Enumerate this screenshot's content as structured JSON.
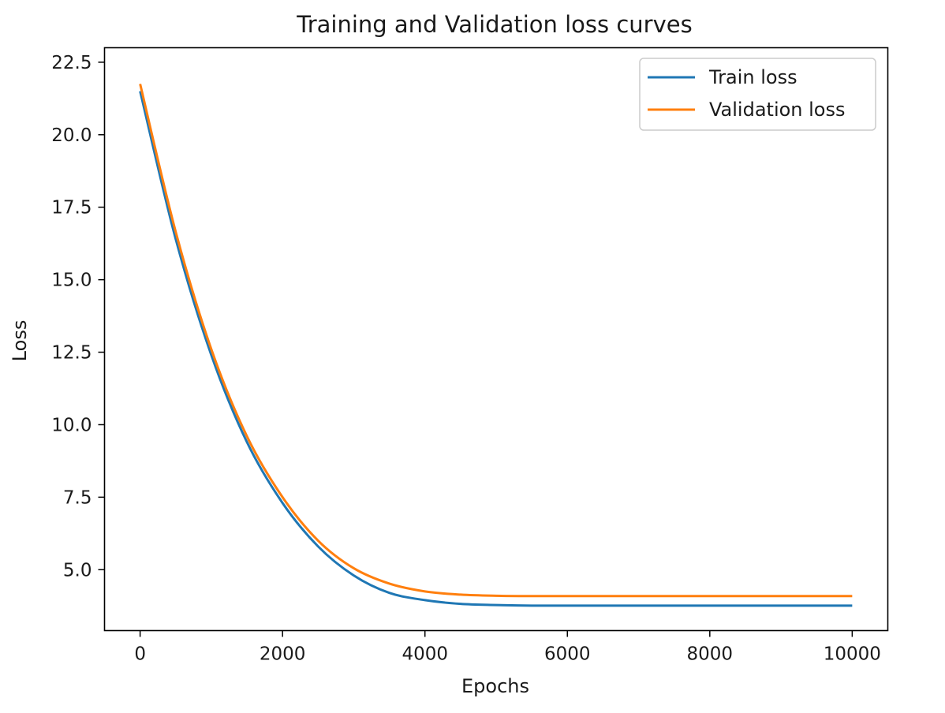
{
  "chart_data": {
    "type": "line",
    "title": "Training and Validation loss curves",
    "xlabel": "Epochs",
    "ylabel": "Loss",
    "xlim": [
      -500,
      10500
    ],
    "ylim": [
      2.9,
      23.0
    ],
    "xticks": [
      0,
      2000,
      4000,
      6000,
      8000,
      10000
    ],
    "xtick_labels": [
      "0",
      "2000",
      "4000",
      "6000",
      "8000",
      "10000"
    ],
    "yticks": [
      5.0,
      7.5,
      10.0,
      12.5,
      15.0,
      17.5,
      20.0,
      22.5
    ],
    "ytick_labels": [
      "5.0",
      "7.5",
      "10.0",
      "12.5",
      "15.0",
      "17.5",
      "20.0",
      "22.5"
    ],
    "legend_position": "top-right",
    "grid": false,
    "x": [
      0,
      500,
      1000,
      1500,
      2000,
      2500,
      3000,
      3500,
      4000,
      4500,
      5000,
      5500,
      6000,
      7000,
      8000,
      9000,
      10000
    ],
    "series": [
      {
        "name": "Train loss",
        "color": "#1f77b4",
        "values": [
          21.5,
          16.4,
          12.4,
          9.4,
          7.3,
          5.8,
          4.8,
          4.2,
          3.95,
          3.82,
          3.78,
          3.76,
          3.76,
          3.76,
          3.76,
          3.76,
          3.76
        ]
      },
      {
        "name": "Validation loss",
        "color": "#ff7f0e",
        "values": [
          21.75,
          16.65,
          12.6,
          9.6,
          7.5,
          6.0,
          5.05,
          4.52,
          4.25,
          4.14,
          4.1,
          4.09,
          4.09,
          4.09,
          4.09,
          4.09,
          4.09
        ]
      }
    ]
  }
}
